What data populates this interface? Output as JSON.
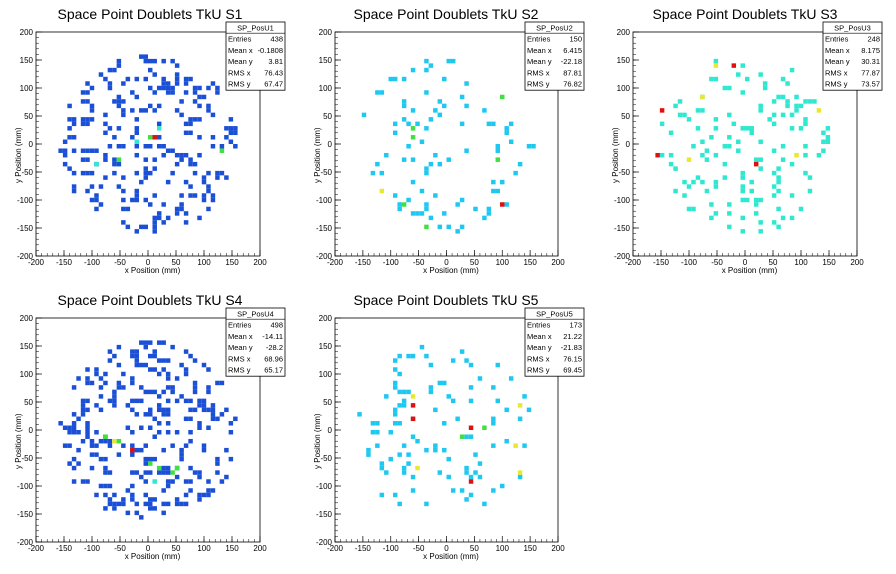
{
  "colors": {
    "blue": "#1a4fd6",
    "cyan": "#1ec8f0",
    "aqua": "#2ee8d0",
    "green": "#40e040",
    "yellow": "#e8e830",
    "red": "#e01010",
    "axis": "#000000",
    "frame": "#000000"
  },
  "chart_data": [
    {
      "type": "heatmap",
      "title": "Space Point Doublets TkU S1",
      "xlabel": "x Position (mm)",
      "ylabel": "y Position (mm)",
      "xlim": [
        -200,
        200
      ],
      "ylim": [
        -200,
        200
      ],
      "xticks": [
        -200,
        -150,
        -100,
        -50,
        0,
        50,
        100,
        150,
        200
      ],
      "yticks": [
        -200,
        -150,
        -100,
        -50,
        0,
        50,
        100,
        150,
        200
      ],
      "stats": {
        "name": "SP_PosU1",
        "rows": [
          {
            "label": "Entries",
            "value": "438"
          },
          {
            "label": "Mean x",
            "value": "-0.1808"
          },
          {
            "label": "Mean y",
            "value": "3.81"
          },
          {
            "label": "RMS x",
            "value": "76.43"
          },
          {
            "label": "RMS y",
            "value": "67.47"
          }
        ]
      },
      "entries": 438,
      "mean_x": -0.1808,
      "mean_y": 3.81,
      "rms_x": 76.43,
      "rms_y": 67.47,
      "dominant_color": "blue",
      "hot_spots": [
        [
          -20,
          0,
          "aqua"
        ],
        [
          0,
          10,
          "green"
        ],
        [
          10,
          15,
          "red"
        ],
        [
          -50,
          -25,
          "green"
        ],
        [
          20,
          30,
          "aqua"
        ],
        [
          130,
          -10,
          "green"
        ],
        [
          -90,
          -40,
          "aqua"
        ]
      ]
    },
    {
      "type": "heatmap",
      "title": "Space Point Doublets TkU S2",
      "xlabel": "x Position (mm)",
      "ylabel": "y Position (mm)",
      "xlim": [
        -200,
        200
      ],
      "ylim": [
        -200,
        200
      ],
      "xticks": [
        -200,
        -150,
        -100,
        -50,
        0,
        50,
        100,
        150,
        200
      ],
      "yticks": [
        -200,
        -150,
        -100,
        -50,
        0,
        50,
        100,
        150,
        200
      ],
      "stats": {
        "name": "SP_PosU2",
        "rows": [
          {
            "label": "Entries",
            "value": "150"
          },
          {
            "label": "Mean x",
            "value": "6.415"
          },
          {
            "label": "Mean y",
            "value": "-22.18"
          },
          {
            "label": "RMS x",
            "value": "87.81"
          },
          {
            "label": "RMS y",
            "value": "76.82"
          }
        ]
      },
      "entries": 150,
      "mean_x": 6.415,
      "mean_y": -22.18,
      "rms_x": 87.81,
      "rms_y": 76.82,
      "dominant_color": "cyan",
      "hot_spots": [
        [
          -60,
          30,
          "green"
        ],
        [
          -60,
          15,
          "green"
        ],
        [
          90,
          -30,
          "green"
        ],
        [
          100,
          -110,
          "red"
        ],
        [
          -80,
          -110,
          "green"
        ],
        [
          -120,
          -85,
          "yellow"
        ],
        [
          100,
          80,
          "green"
        ],
        [
          -40,
          -150,
          "green"
        ]
      ]
    },
    {
      "type": "heatmap",
      "title": "Space Point Doublets TkU S3",
      "xlabel": "x Position (mm)",
      "ylabel": "y Position (mm)",
      "xlim": [
        -200,
        200
      ],
      "ylim": [
        -200,
        200
      ],
      "xticks": [
        -200,
        -150,
        -100,
        -50,
        0,
        50,
        100,
        150,
        200
      ],
      "yticks": [
        -200,
        -150,
        -100,
        -50,
        0,
        50,
        100,
        150,
        200
      ],
      "stats": {
        "name": "SP_PosU3",
        "rows": [
          {
            "label": "Entries",
            "value": "248"
          },
          {
            "label": "Mean x",
            "value": "8.175"
          },
          {
            "label": "Mean y",
            "value": "30.31"
          },
          {
            "label": "RMS x",
            "value": "77.87"
          },
          {
            "label": "RMS y",
            "value": "73.57"
          }
        ]
      },
      "entries": 248,
      "mean_x": 8.175,
      "mean_y": 30.31,
      "rms_x": 77.87,
      "rms_y": 73.57,
      "dominant_color": "aqua",
      "hot_spots": [
        [
          -20,
          140,
          "red"
        ],
        [
          -50,
          140,
          "yellow"
        ],
        [
          -150,
          60,
          "red"
        ],
        [
          -160,
          -20,
          "red"
        ],
        [
          20,
          -40,
          "red"
        ],
        [
          90,
          -20,
          "yellow"
        ],
        [
          -100,
          -30,
          "yellow"
        ],
        [
          130,
          60,
          "yellow"
        ],
        [
          -80,
          80,
          "yellow"
        ]
      ]
    },
    {
      "type": "heatmap",
      "title": "Space Point Doublets TkU S4",
      "xlabel": "x Position (mm)",
      "ylabel": "y Position (mm)",
      "xlim": [
        -200,
        200
      ],
      "ylim": [
        -200,
        200
      ],
      "xticks": [
        -200,
        -150,
        -100,
        -50,
        0,
        50,
        100,
        150,
        200
      ],
      "yticks": [
        -200,
        -150,
        -100,
        -50,
        0,
        50,
        100,
        150,
        200
      ],
      "stats": {
        "name": "SP_PosU4",
        "rows": [
          {
            "label": "Entries",
            "value": "498"
          },
          {
            "label": "Mean x",
            "value": "-14.11"
          },
          {
            "label": "Mean y",
            "value": "-28.2"
          },
          {
            "label": "RMS x",
            "value": "68.96"
          },
          {
            "label": "RMS y",
            "value": "65.17"
          }
        ]
      },
      "entries": 498,
      "mean_x": -14.11,
      "mean_y": -28.2,
      "rms_x": 68.96,
      "rms_y": 65.17,
      "dominant_color": "blue",
      "hot_spots": [
        [
          -60,
          -20,
          "yellow"
        ],
        [
          -50,
          -20,
          "green"
        ],
        [
          -30,
          -40,
          "red"
        ],
        [
          0,
          -60,
          "green"
        ],
        [
          20,
          -70,
          "green"
        ],
        [
          40,
          -80,
          "green"
        ],
        [
          -80,
          -10,
          "green"
        ],
        [
          50,
          -70,
          "green"
        ],
        [
          10,
          -90,
          "aqua"
        ]
      ]
    },
    {
      "type": "heatmap",
      "title": "Space Point Doublets TkU S5",
      "xlabel": "x Position (mm)",
      "ylabel": "y Position (mm)",
      "xlim": [
        -200,
        200
      ],
      "ylim": [
        -200,
        200
      ],
      "xticks": [
        -200,
        -150,
        -100,
        -50,
        0,
        50,
        100,
        150,
        200
      ],
      "yticks": [
        -200,
        -150,
        -100,
        -50,
        0,
        50,
        100,
        150,
        200
      ],
      "stats": {
        "name": "SP_PosU5",
        "rows": [
          {
            "label": "Entries",
            "value": "173"
          },
          {
            "label": "Mean x",
            "value": "21.22"
          },
          {
            "label": "Mean y",
            "value": "-21.83"
          },
          {
            "label": "RMS x",
            "value": "76.15"
          },
          {
            "label": "RMS y",
            "value": "69.45"
          }
        ]
      },
      "entries": 173,
      "mean_x": 21.22,
      "mean_y": -21.83,
      "rms_x": 76.15,
      "rms_y": 69.45,
      "dominant_color": "cyan",
      "hot_spots": [
        [
          -60,
          40,
          "red"
        ],
        [
          -60,
          20,
          "red"
        ],
        [
          -60,
          60,
          "yellow"
        ],
        [
          40,
          0,
          "red"
        ],
        [
          40,
          -90,
          "red"
        ],
        [
          30,
          -10,
          "green"
        ],
        [
          130,
          40,
          "yellow"
        ],
        [
          -50,
          -70,
          "yellow"
        ],
        [
          130,
          -80,
          "yellow"
        ],
        [
          120,
          -30,
          "yellow"
        ],
        [
          70,
          0,
          "green"
        ]
      ]
    }
  ]
}
